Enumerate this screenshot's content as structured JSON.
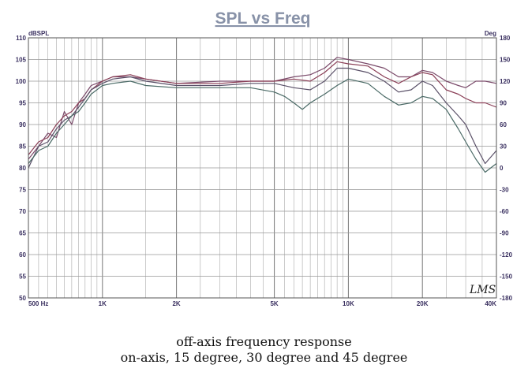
{
  "chart_data": {
    "type": "line",
    "title": "SPL vs Freq",
    "ylabel": "dBSPL",
    "ylabel_right": "Deg",
    "x_scale": "log",
    "xlim": [
      500,
      40000
    ],
    "ylim": [
      50,
      110
    ],
    "ylim_right": [
      -180,
      180
    ],
    "grid": true,
    "x_ticks": [
      {
        "value": 500,
        "label": "500 Hz"
      },
      {
        "value": 1000,
        "label": "1K"
      },
      {
        "value": 2000,
        "label": "2K"
      },
      {
        "value": 5000,
        "label": "5K"
      },
      {
        "value": 10000,
        "label": "10K"
      },
      {
        "value": 20000,
        "label": "20K"
      },
      {
        "value": 40000,
        "label": "40K"
      }
    ],
    "y_ticks": [
      "50",
      "55",
      "60",
      "65",
      "70",
      "75",
      "80",
      "85",
      "90",
      "95",
      "100",
      "105",
      "110"
    ],
    "y_ticks_right": [
      "-180",
      "-150",
      "-120",
      "-90",
      "-60",
      "-30",
      "0",
      "30",
      "60",
      "90",
      "120",
      "150",
      "180"
    ],
    "series": [
      {
        "color": "#7a4a6a",
        "points": [
          [
            500,
            82
          ],
          [
            550,
            85
          ],
          [
            600,
            88
          ],
          [
            650,
            87
          ],
          [
            700,
            93
          ],
          [
            750,
            90
          ],
          [
            800,
            95
          ],
          [
            850,
            97
          ],
          [
            900,
            99
          ],
          [
            1000,
            100
          ],
          [
            1100,
            101
          ],
          [
            1300,
            101
          ],
          [
            1500,
            100.5
          ],
          [
            2000,
            99.5
          ],
          [
            3000,
            100
          ],
          [
            4000,
            100
          ],
          [
            5000,
            100
          ],
          [
            6000,
            101
          ],
          [
            7000,
            101.5
          ],
          [
            8000,
            103
          ],
          [
            9000,
            105.5
          ],
          [
            10000,
            105
          ],
          [
            12000,
            104
          ],
          [
            14000,
            103
          ],
          [
            16000,
            101
          ],
          [
            18000,
            101
          ],
          [
            20000,
            102.5
          ],
          [
            22000,
            102
          ],
          [
            25000,
            100
          ],
          [
            28000,
            99
          ],
          [
            30000,
            98.5
          ],
          [
            33000,
            100
          ],
          [
            36000,
            100
          ],
          [
            40000,
            99.5
          ]
        ]
      },
      {
        "color": "#8a3e56",
        "points": [
          [
            500,
            83
          ],
          [
            550,
            86
          ],
          [
            600,
            87
          ],
          [
            650,
            90
          ],
          [
            700,
            92
          ],
          [
            750,
            93
          ],
          [
            800,
            95
          ],
          [
            850,
            96
          ],
          [
            900,
            98
          ],
          [
            1000,
            100
          ],
          [
            1100,
            101
          ],
          [
            1300,
            101.5
          ],
          [
            1500,
            100.5
          ],
          [
            2000,
            99.5
          ],
          [
            3000,
            99.5
          ],
          [
            4000,
            100
          ],
          [
            5000,
            100
          ],
          [
            6000,
            100.5
          ],
          [
            7000,
            100
          ],
          [
            8000,
            102
          ],
          [
            9000,
            104.5
          ],
          [
            10000,
            104
          ],
          [
            12000,
            103.5
          ],
          [
            14000,
            101
          ],
          [
            16000,
            99.5
          ],
          [
            18000,
            101
          ],
          [
            20000,
            102
          ],
          [
            22000,
            101.5
          ],
          [
            25000,
            98
          ],
          [
            28000,
            97
          ],
          [
            30000,
            96
          ],
          [
            33000,
            95
          ],
          [
            36000,
            95
          ],
          [
            40000,
            94
          ]
        ]
      },
      {
        "color": "#5a5068",
        "points": [
          [
            500,
            80
          ],
          [
            550,
            85
          ],
          [
            600,
            86
          ],
          [
            650,
            89
          ],
          [
            700,
            91
          ],
          [
            750,
            92
          ],
          [
            800,
            94
          ],
          [
            850,
            96
          ],
          [
            900,
            98
          ],
          [
            1000,
            99.5
          ],
          [
            1100,
            100.5
          ],
          [
            1300,
            101
          ],
          [
            1500,
            100
          ],
          [
            2000,
            99
          ],
          [
            3000,
            99
          ],
          [
            4000,
            99.5
          ],
          [
            5000,
            99.5
          ],
          [
            6000,
            98.5
          ],
          [
            7000,
            98
          ],
          [
            8000,
            100
          ],
          [
            9000,
            103
          ],
          [
            10000,
            103
          ],
          [
            12000,
            102
          ],
          [
            14000,
            100
          ],
          [
            16000,
            97.5
          ],
          [
            18000,
            98
          ],
          [
            20000,
            100
          ],
          [
            22000,
            99
          ],
          [
            25000,
            95
          ],
          [
            28000,
            92
          ],
          [
            30000,
            90
          ],
          [
            33000,
            85
          ],
          [
            36000,
            81
          ],
          [
            40000,
            84
          ]
        ]
      },
      {
        "color": "#4a6a66",
        "points": [
          [
            500,
            81
          ],
          [
            550,
            84
          ],
          [
            600,
            85
          ],
          [
            650,
            88
          ],
          [
            700,
            90
          ],
          [
            750,
            92
          ],
          [
            800,
            93
          ],
          [
            850,
            95
          ],
          [
            900,
            97
          ],
          [
            1000,
            99
          ],
          [
            1100,
            99.5
          ],
          [
            1300,
            100
          ],
          [
            1500,
            99
          ],
          [
            2000,
            98.5
          ],
          [
            3000,
            98.5
          ],
          [
            4000,
            98.5
          ],
          [
            5000,
            97.5
          ],
          [
            5500,
            96.5
          ],
          [
            6000,
            95
          ],
          [
            6500,
            93.5
          ],
          [
            7000,
            95
          ],
          [
            8000,
            97
          ],
          [
            9000,
            99
          ],
          [
            10000,
            100.5
          ],
          [
            12000,
            99.5
          ],
          [
            14000,
            96.5
          ],
          [
            16000,
            94.5
          ],
          [
            18000,
            95
          ],
          [
            20000,
            96.5
          ],
          [
            22000,
            96
          ],
          [
            25000,
            93.5
          ],
          [
            28000,
            89
          ],
          [
            30000,
            86
          ],
          [
            33000,
            82
          ],
          [
            36000,
            79
          ],
          [
            40000,
            81
          ]
        ]
      }
    ],
    "annotations": [
      "LMS"
    ]
  },
  "captions": {
    "line1": "off-axis frequency response",
    "line2": "on-axis, 15 degree, 30 degree and 45 degree"
  }
}
